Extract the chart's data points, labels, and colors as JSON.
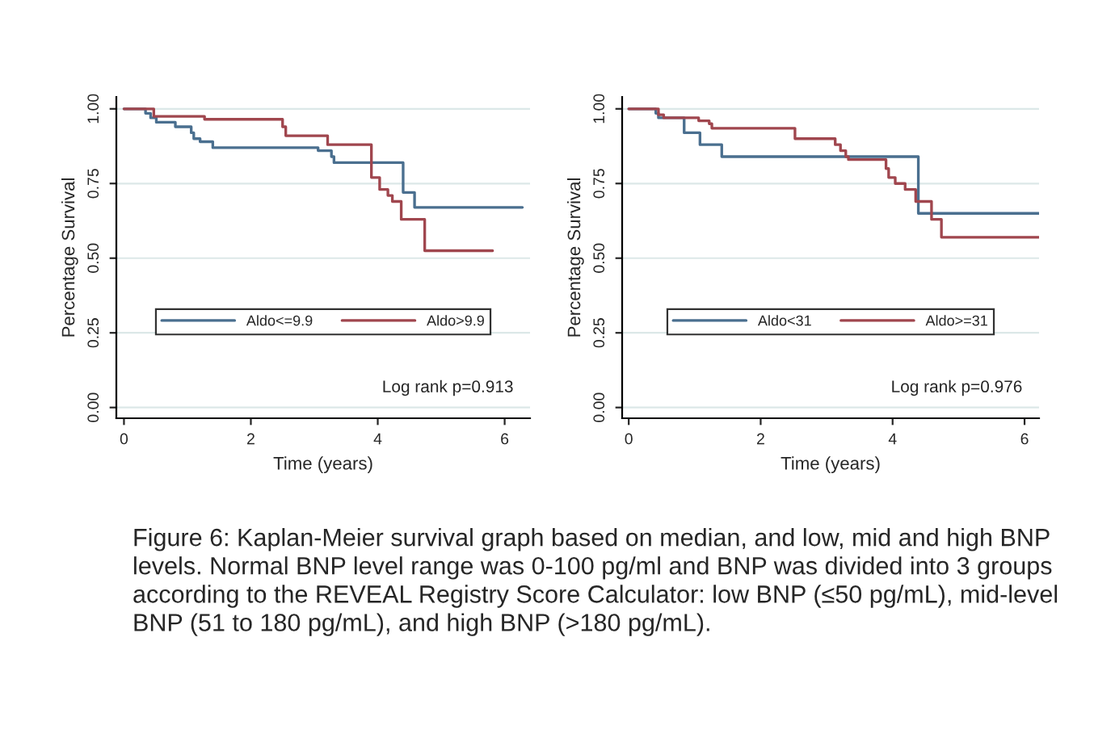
{
  "chart_data": [
    {
      "type": "step",
      "xlabel": "Time (years)",
      "ylabel": "Percentage Survival",
      "xlim": [
        -0.12,
        6.4
      ],
      "ylim": [
        -0.036,
        1.04
      ],
      "xticks": [
        0,
        2,
        4,
        6
      ],
      "yticks": [
        {
          "value": 0,
          "label": "0.00"
        },
        {
          "value": 0.25,
          "label": "0.25"
        },
        {
          "value": 0.5,
          "label": "0.50"
        },
        {
          "value": 0.75,
          "label": "0.75"
        },
        {
          "value": 1,
          "label": "1.00"
        }
      ],
      "grid": "y",
      "legend": "center",
      "annotations": [
        "Log rank p=0.913"
      ],
      "series": [
        {
          "name": "Aldo<=9.9",
          "color": "#4a6f8f",
          "x": [
            0,
            0.34,
            0.42,
            0.51,
            0.81,
            1.06,
            1.1,
            1.2,
            1.4,
            3.06,
            3.27,
            3.31,
            4.4,
            4.58,
            6.28
          ],
          "values": [
            1.0,
            0.985,
            0.97,
            0.955,
            0.94,
            0.92,
            0.9,
            0.89,
            0.87,
            0.86,
            0.84,
            0.82,
            0.72,
            0.67,
            0.67
          ]
        },
        {
          "name": "Aldo>9.9",
          "color": "#a0464e",
          "x": [
            0,
            0.47,
            1.27,
            2.5,
            2.55,
            3.21,
            3.9,
            4.03,
            4.16,
            4.23,
            4.37,
            4.74,
            5.81
          ],
          "values": [
            1.0,
            0.975,
            0.965,
            0.94,
            0.91,
            0.88,
            0.77,
            0.73,
            0.71,
            0.69,
            0.63,
            0.525,
            0.525
          ]
        }
      ]
    },
    {
      "type": "step",
      "xlabel": "Time (years)",
      "ylabel": "Percentage Survival",
      "xlim": [
        -0.1,
        6.22
      ],
      "ylim": [
        -0.036,
        1.04
      ],
      "xticks": [
        0,
        2,
        4,
        6
      ],
      "yticks": [
        {
          "value": 0,
          "label": "0.00"
        },
        {
          "value": 0.25,
          "label": "0.25"
        },
        {
          "value": 0.5,
          "label": "0.50"
        },
        {
          "value": 0.75,
          "label": "0.75"
        },
        {
          "value": 1,
          "label": "1.00"
        }
      ],
      "grid": "y",
      "legend": "center",
      "annotations": [
        "Log rank p=0.976",
        "Figure 6: Kaplan-Meier survival graph based on median, and low, mid and high BNP levels. Normal BNP level range was 0-100 pg/ml and BNP was divided into 3 groups according to the REVEAL Registry Score Calculator: low BNP (≤50 pg/mL), mid-level BNP (51 to 180 pg/mL), and high BNP (>180 pg/mL)."
      ],
      "series": [
        {
          "name": "Aldo<31",
          "color": "#4a6f8f",
          "x": [
            0,
            0.41,
            0.45,
            0.84,
            1.08,
            1.41,
            4.39,
            6.22
          ],
          "values": [
            1.0,
            0.985,
            0.97,
            0.92,
            0.88,
            0.84,
            0.65,
            0.65
          ]
        },
        {
          "name": "Aldo>=31",
          "color": "#a0464e",
          "x": [
            0,
            0.45,
            0.53,
            1.06,
            1.22,
            1.26,
            2.52,
            3.13,
            3.21,
            3.29,
            3.33,
            3.9,
            3.94,
            4.04,
            4.19,
            4.35,
            4.59,
            4.74,
            6.22
          ],
          "values": [
            1.0,
            0.98,
            0.97,
            0.96,
            0.95,
            0.935,
            0.9,
            0.88,
            0.86,
            0.84,
            0.83,
            0.8,
            0.77,
            0.75,
            0.73,
            0.69,
            0.63,
            0.57,
            0.57
          ]
        }
      ]
    }
  ]
}
